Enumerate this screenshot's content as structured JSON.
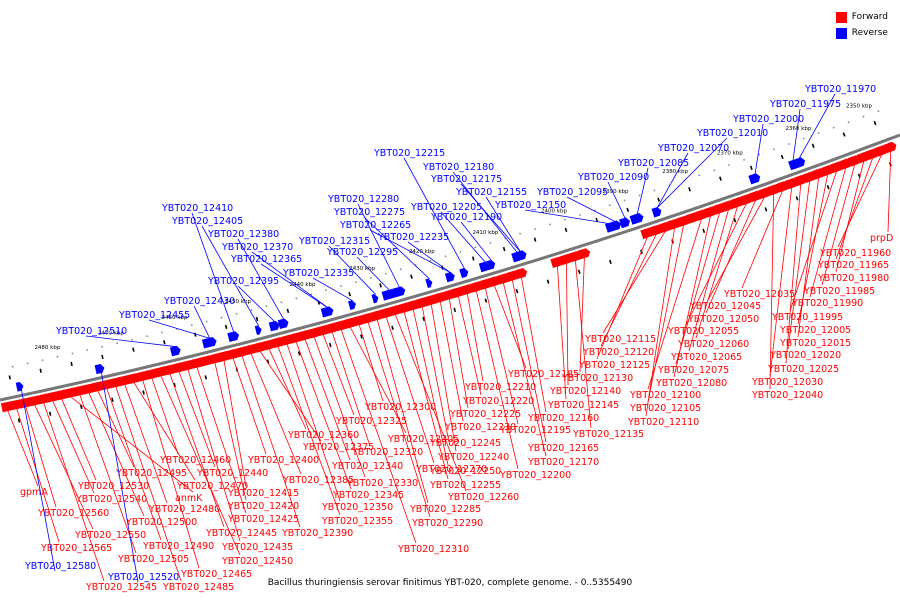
{
  "colors": {
    "forward": "#ff0000",
    "reverse": "#0000ff",
    "backbone": "#777777"
  },
  "legend": [
    {
      "label": "Forward",
      "color": "#ff0000"
    },
    {
      "label": "Reverse",
      "color": "#0000ff"
    }
  ],
  "caption": "Bacillus thuringiensis serovar finitimus YBT-020, complete genome. - 0..5355490",
  "chart_data": {
    "type": "genome-map",
    "ticks": [
      "2350 kbp",
      "2360 kbp",
      "2370 kbp",
      "2380 kbp",
      "2390 kbp",
      "2400 kbp",
      "2410 kbp",
      "2420 kbp",
      "2430 kbp",
      "2440 kbp",
      "2450 kbp",
      "2460 kbp",
      "2470 kbp",
      "2480 kbp"
    ],
    "forward_labels": [
      "prpD",
      "YBT020_11960",
      "YBT020_11965",
      "YBT020_11980",
      "YBT020_11985",
      "YBT020_11990",
      "YBT020_11995",
      "YBT020_12005",
      "YBT020_12015",
      "YBT020_12020",
      "YBT020_12025",
      "YBT020_12030",
      "YBT020_12035",
      "YBT020_12040",
      "YBT020_12045",
      "YBT020_12050",
      "YBT020_12055",
      "YBT020_12060",
      "YBT020_12065",
      "YBT020_12075",
      "YBT020_12080",
      "YBT020_12100",
      "YBT020_12105",
      "YBT020_12110",
      "YBT020_12115",
      "YBT020_12120",
      "YBT020_12125",
      "YBT020_12130",
      "YBT020_12135",
      "YBT020_12140",
      "YBT020_12145",
      "YBT020_12160",
      "YBT020_12165",
      "YBT020_12170",
      "YBT020_12185",
      "YBT020_12195",
      "YBT020_12200",
      "YBT020_12210",
      "YBT020_12220",
      "YBT020_12225",
      "YBT020_12230",
      "YBT020_12240",
      "YBT020_12245",
      "YBT020_12250",
      "YBT020_12255",
      "YBT020_12260",
      "YBT020_12270",
      "YBT020_12285",
      "YBT020_12290",
      "YBT020_12300",
      "YBT020_12305",
      "YBT020_12310",
      "YBT020_12320",
      "YBT020_12325",
      "YBT020_12330",
      "YBT020_12340",
      "YBT020_12345",
      "YBT020_12350",
      "YBT020_12355",
      "YBT020_12360",
      "YBT020_12375",
      "YBT020_12385",
      "YBT020_12390",
      "YBT020_12400",
      "YBT020_12415",
      "YBT020_12420",
      "YBT020_12425",
      "YBT020_12435",
      "YBT020_12440",
      "YBT020_12445",
      "YBT020_12450",
      "YBT020_12460",
      "YBT020_12465",
      "YBT020_12470",
      "YBT020_12480",
      "YBT020_12485",
      "YBT020_12490",
      "YBT020_12495",
      "YBT020_12500",
      "YBT020_12505",
      "anmK",
      "YBT020_12530",
      "YBT020_12540",
      "YBT020_12545",
      "YBT020_12550",
      "YBT020_12560",
      "YBT020_12565",
      "gpmA"
    ],
    "reverse_labels": [
      "YBT020_11970",
      "YBT020_11975",
      "YBT020_12000",
      "YBT020_12010",
      "YBT020_12070",
      "YBT020_12085",
      "YBT020_12090",
      "YBT020_12095",
      "YBT020_12150",
      "YBT020_12155",
      "YBT020_12175",
      "YBT020_12180",
      "YBT020_12190",
      "YBT020_12205",
      "YBT020_12215",
      "YBT020_12235",
      "YBT020_12265",
      "YBT020_12275",
      "YBT020_12280",
      "YBT020_12295",
      "YBT020_12315",
      "YBT020_12335",
      "YBT020_12365",
      "YBT020_12370",
      "YBT020_12380",
      "YBT020_12395",
      "YBT020_12405",
      "YBT020_12410",
      "YBT020_12430",
      "YBT020_12455",
      "YBT020_12510",
      "YBT020_12520",
      "YBT020_12580"
    ]
  }
}
